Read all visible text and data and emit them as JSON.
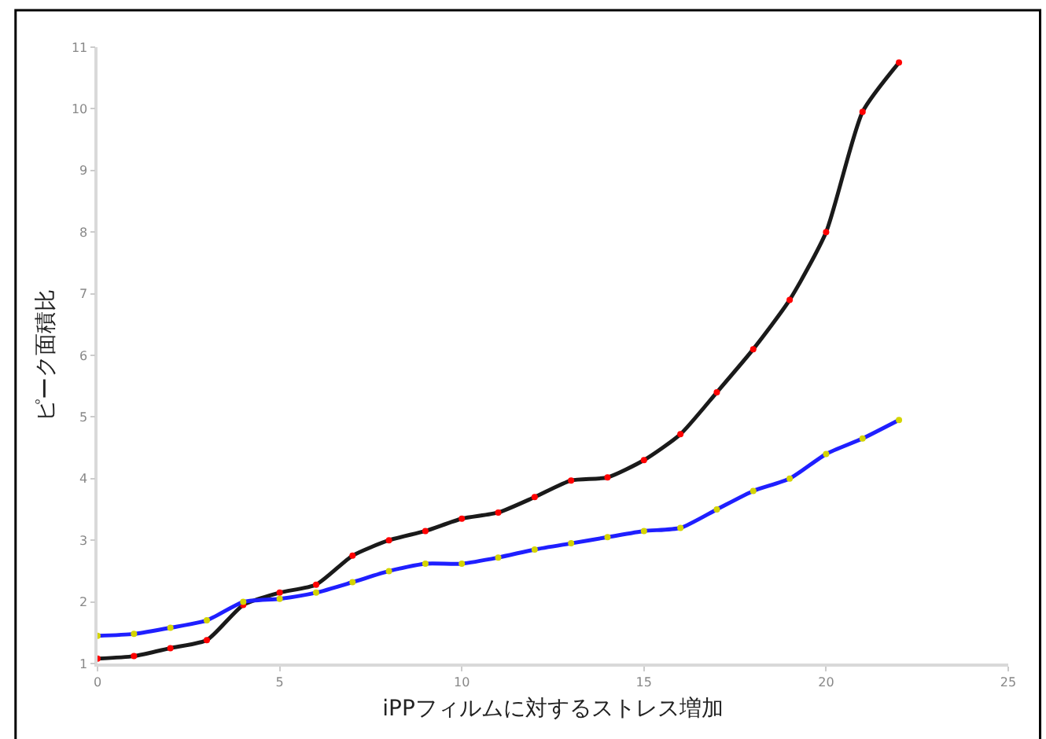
{
  "chart_data": {
    "type": "line",
    "xlabel": "iPPフィルムに対するストレス増加",
    "ylabel": "ピーク面積比",
    "x": [
      0,
      1,
      2,
      3,
      4,
      5,
      6,
      7,
      8,
      9,
      10,
      11,
      12,
      13,
      14,
      15,
      16,
      17,
      18,
      19,
      20,
      21,
      22
    ],
    "series": [
      {
        "color": "#1a1a1a",
        "colors": [
          "#ff0000",
          "#ff0000",
          "#ff0000",
          "#ff0000",
          "#ff0000",
          "#ff0000",
          "#ff0000",
          "#ff0000",
          "#ff0000",
          "#ff0000",
          "#ff0000",
          "#ff0000",
          "#ff0000",
          "#ff0000",
          "#ff0000",
          "#ff0000",
          "#ff0000",
          "#ff0000",
          "#ff0000",
          "#ff0000",
          "#ff0000",
          "#ff0000",
          "#ff0000"
        ],
        "values": [
          1.08,
          1.12,
          1.25,
          1.38,
          1.95,
          2.15,
          2.28,
          2.75,
          3.0,
          3.15,
          3.35,
          3.45,
          3.7,
          3.97,
          4.02,
          4.3,
          4.72,
          5.4,
          6.1,
          6.9,
          8.0,
          9.95,
          10.75
        ]
      },
      {
        "color": "#1f1fff",
        "colors": [
          "#d4d400",
          "#d4d400",
          "#d4d400",
          "#d4d400",
          "#d4d400",
          "#d4d400",
          "#d4d400",
          "#d4d400",
          "#d4d400",
          "#d4d400",
          "#d4d400",
          "#d4d400",
          "#d4d400",
          "#d4d400",
          "#d4d400",
          "#d4d400",
          "#d4d400",
          "#d4d400",
          "#d4d400",
          "#d4d400",
          "#d4d400",
          "#d4d400",
          "#d4d400"
        ],
        "values": [
          1.45,
          1.48,
          1.58,
          1.7,
          2.0,
          2.05,
          2.15,
          2.32,
          2.5,
          2.62,
          2.62,
          2.72,
          2.85,
          2.95,
          3.05,
          3.15,
          3.2,
          3.5,
          3.8,
          4.0,
          4.4,
          4.65,
          4.95
        ]
      }
    ],
    "xlim": [
      0,
      25
    ],
    "xticks": [
      0,
      5,
      10,
      15,
      20,
      25
    ],
    "ylim": [
      1,
      11
    ],
    "yticks": [
      1,
      2,
      3,
      4,
      5,
      6,
      7,
      8,
      9,
      10,
      11
    ],
    "marker": "circle",
    "line_style": "solid"
  }
}
